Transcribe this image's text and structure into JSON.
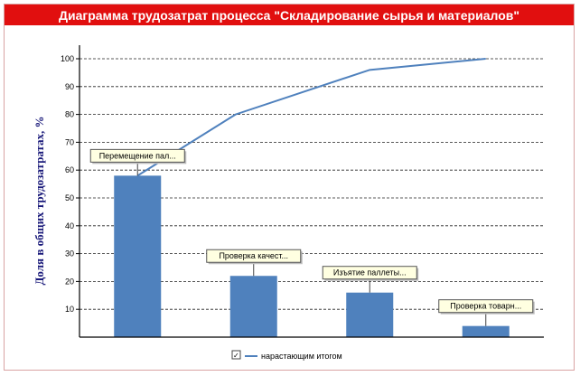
{
  "window": {
    "title": "Диаграмма трудозатрат процесса \"Складирование сырья и материалов\""
  },
  "legend": {
    "checkbox_mark": "✓",
    "label": "нарастающим итогом"
  },
  "colors": {
    "title_bg": "#e10f0f",
    "bar": "#4f81bd",
    "line": "#4f81bd",
    "annotation_bg": "#ffffe1"
  },
  "chart_data": {
    "type": "bar",
    "categories": [
      "Перемещение пал...",
      "Проверка качест...",
      "Изъятие паллеты...",
      "Проверка товарн..."
    ],
    "values": [
      58,
      22,
      16,
      4
    ],
    "cumulative": [
      58,
      80,
      96,
      100
    ],
    "ylabel": "Доля в общих трудозатратах, %",
    "ylim": [
      0,
      100
    ],
    "yticks": [
      10,
      20,
      30,
      40,
      50,
      60,
      70,
      80,
      90,
      100
    ],
    "grid": true,
    "legend_position": "bottom"
  }
}
